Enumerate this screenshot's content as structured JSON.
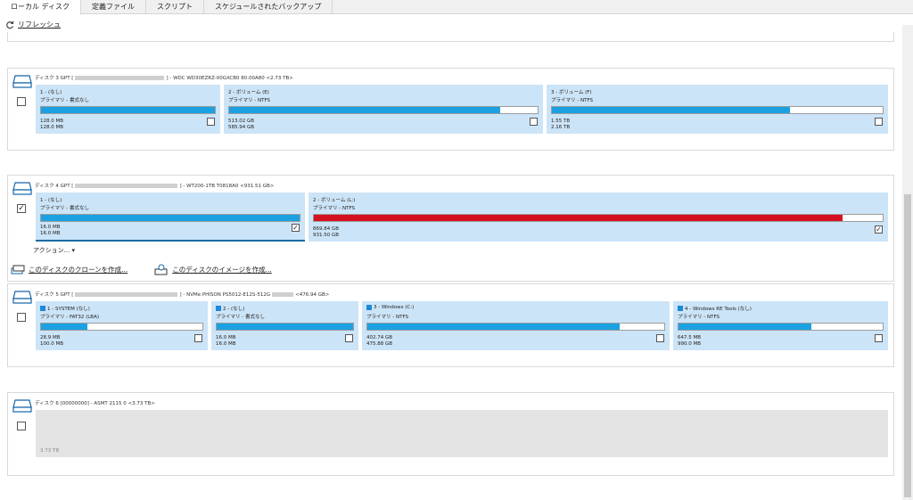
{
  "tabs": [
    "ローカル ディスク",
    "定義ファイル",
    "スクリプト",
    "スケジュールされたバックアップ"
  ],
  "toolbar": {
    "refresh_label": "リフレッシュ"
  },
  "disk3": {
    "prefix": "ディスク 3 GPT [",
    "suffix": "] - WDC WD30EZRZ-00GXCB0 80.00A80  <2.73 TB>",
    "partitions": [
      {
        "name": "1 - (なし)",
        "type": "プライマリ - 書式なし",
        "used": "128.0 MB",
        "total": "128.0 MB",
        "fill": 1.0
      },
      {
        "name": "2 - ボリューム (E)",
        "type": "プライマリ - NTFS",
        "used": "513.02 GB",
        "total": "585.94 GB",
        "fill": 0.88
      },
      {
        "name": "3 - ボリューム (F)",
        "type": "プライマリ - NTFS",
        "used": "1.55 TB",
        "total": "2.16 TB",
        "fill": 0.72
      }
    ]
  },
  "disk4": {
    "prefix": "ディスク 4 GPT [",
    "suffix": "] - WT200-1TB T0818A0  <931.51 GB>",
    "partitions": [
      {
        "name": "1 - (なし)",
        "type": "プライマリ - 書式なし",
        "used": "16.0 MB",
        "total": "16.0 MB",
        "fill": 1.0
      },
      {
        "name": "2 - ボリューム (L:)",
        "type": "プライマリ - NTFS",
        "used": "869.84 GB",
        "total": "931.50 GB",
        "fill": 0.93
      }
    ],
    "actions_label": "アクション... ▾",
    "clone_label": "このディスクのクローンを作成...",
    "image_label": "このディスクのイメージを作成..."
  },
  "disk5": {
    "prefix": "ディスク 5 GPT [",
    "suffix": "] - NVMe PHISON PS5012-E12S-512G",
    "size": "<476.94 GB>",
    "partitions": [
      {
        "name": "1 - SYSTEM (なし)",
        "type": "プライマリ - FAT32 (LBA)",
        "used": "28.9 MB",
        "total": "100.0 MB",
        "fill": 0.29
      },
      {
        "name": "2 - (なし)",
        "type": "プライマリ - 書式なし",
        "used": "16.0 MB",
        "total": "16.0 MB",
        "fill": 1.0
      },
      {
        "name": "3 - Windows (C:)",
        "type": "プライマリ - NTFS",
        "used": "402.74 GB",
        "total": "475.88 GB",
        "fill": 0.85
      },
      {
        "name": "4 - Windows RE Tools (なし)",
        "type": "プライマリ - NTFS",
        "used": "647.5 MB",
        "total": "990.0 MB",
        "fill": 0.65
      }
    ]
  },
  "disk6": {
    "header": "ディスク 6 [00000000] - ASMT     2115             0  <3.73 TB>",
    "unallocated": "3.73 TB"
  },
  "colors": {
    "bar_blue": "#1ba1e2",
    "bar_red": "#d41021",
    "partition_bg": "#cce4f7"
  },
  "icons": [
    "refresh-icon",
    "disk-icon",
    "windows-icon",
    "clone-icon",
    "image-icon",
    "checkbox"
  ]
}
